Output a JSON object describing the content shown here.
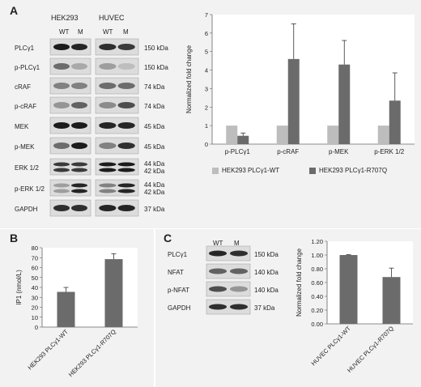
{
  "panel_a": {
    "letter": "A",
    "cell_lines": [
      "HEK293",
      "HUVEC"
    ],
    "lane_labels": [
      "WT",
      "M"
    ],
    "blot_rows": [
      {
        "label": "PLCγ1",
        "kda": [
          "150 kDa"
        ]
      },
      {
        "label": "p-PLCγ1",
        "kda": [
          "150 kDa"
        ]
      },
      {
        "label": "cRAF",
        "kda": [
          "74 kDa"
        ]
      },
      {
        "label": "p-cRAF",
        "kda": [
          "74 kDa"
        ]
      },
      {
        "label": "MEK",
        "kda": [
          "45 kDa"
        ]
      },
      {
        "label": "p-MEK",
        "kda": [
          "45 kDa"
        ]
      },
      {
        "label": "ERK 1/2",
        "kda": [
          "44 kDa",
          "42 kDa"
        ]
      },
      {
        "label": "p-ERK 1/2",
        "kda": [
          "44 kDa",
          "42 kDa"
        ]
      },
      {
        "label": "GAPDH",
        "kda": [
          "37 kDa"
        ]
      }
    ]
  },
  "panel_b": {
    "letter": "B"
  },
  "panel_c": {
    "letter": "C",
    "lane_labels": [
      "WT",
      "M"
    ],
    "blot_rows": [
      {
        "label": "PLCγ1",
        "kda": "150 kDa"
      },
      {
        "label": "NFAT",
        "kda": "140 kDa"
      },
      {
        "label": "p-NFAT",
        "kda": "140 kDa"
      },
      {
        "label": "GAPDH",
        "kda": "37 kDa"
      }
    ]
  },
  "chart_data": [
    {
      "id": "a",
      "type": "bar",
      "categories": [
        "p-PLCγ1",
        "p-cRAF",
        "p-MEK",
        "p-ERK 1/2"
      ],
      "series": [
        {
          "name": "HEK293 PLCγ1-WT",
          "values": [
            1.0,
            1.0,
            1.0,
            1.0
          ],
          "errors": [
            0.0,
            0.0,
            0.0,
            0.0
          ],
          "color": "#bdbdbd"
        },
        {
          "name": "HEK293 PLCγ1-R707Q",
          "values": [
            0.45,
            4.6,
            4.3,
            2.35
          ],
          "errors": [
            0.15,
            1.9,
            1.3,
            1.5
          ],
          "color": "#6b6b6b"
        }
      ],
      "ylabel": "Normalized fold change",
      "ylim": [
        0,
        7
      ],
      "yticks": [
        "0",
        "1",
        "2",
        "3",
        "4",
        "5",
        "6",
        "7"
      ],
      "legend_position": "bottom"
    },
    {
      "id": "b",
      "type": "bar",
      "categories": [
        "HEK293 PLCγ1-WT",
        "HEK293 PLCγ1-R707Q"
      ],
      "values": [
        35.5,
        68.5
      ],
      "errors": [
        4.5,
        5.5
      ],
      "color": "#6b6b6b",
      "ylabel": "IP1 (nmol/L)",
      "ylim": [
        0,
        80
      ],
      "yticks": [
        "0",
        "10",
        "20",
        "30",
        "40",
        "50",
        "60",
        "70",
        "80"
      ]
    },
    {
      "id": "c",
      "type": "bar",
      "categories": [
        "HUVEC PLCγ1-WT",
        "HUVEC PLCγ1-R707Q"
      ],
      "values": [
        1.0,
        0.68
      ],
      "errors": [
        0.005,
        0.13
      ],
      "color": "#6b6b6b",
      "ylabel": "Normalized fold change",
      "ylim": [
        0,
        1.2
      ],
      "yticks": [
        "0.00",
        "0.20",
        "0.40",
        "0.60",
        "0.80",
        "1.00",
        "1.20"
      ]
    }
  ]
}
